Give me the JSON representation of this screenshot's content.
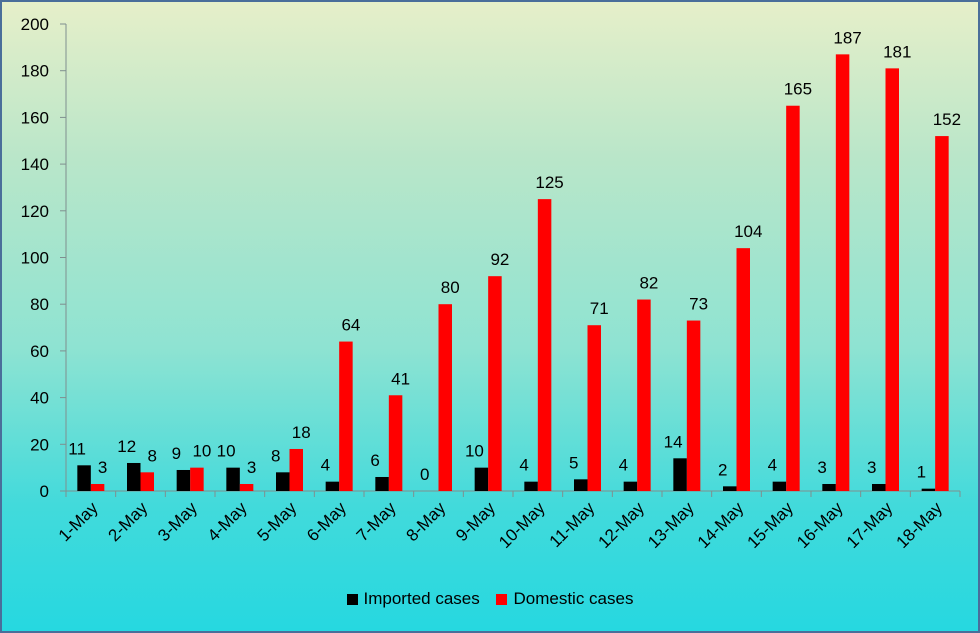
{
  "chart_data": {
    "type": "bar",
    "title": "",
    "xlabel": "",
    "ylabel": "",
    "ylim": [
      0,
      200
    ],
    "ytick_step": 20,
    "yticks": [
      "0",
      "20",
      "40",
      "60",
      "80",
      "100",
      "120",
      "140",
      "160",
      "180",
      "200"
    ],
    "grid": false,
    "legend_position": "bottom",
    "categories": [
      "1-May",
      "2-May",
      "3-May",
      "4-May",
      "5-May",
      "6-May",
      "7-May",
      "8-May",
      "9-May",
      "10-May",
      "11-May",
      "12-May",
      "13-May",
      "14-May",
      "15-May",
      "16-May",
      "17-May",
      "18-May"
    ],
    "series": [
      {
        "name": "Imported cases",
        "color": "#000000",
        "values": [
          11,
          12,
          9,
          10,
          8,
          4,
          6,
          0,
          10,
          4,
          5,
          4,
          14,
          2,
          4,
          3,
          3,
          1
        ]
      },
      {
        "name": "Domestic cases",
        "color": "#ff0000",
        "values": [
          3,
          8,
          10,
          3,
          18,
          64,
          41,
          80,
          92,
          125,
          71,
          82,
          73,
          104,
          165,
          187,
          181,
          152
        ]
      }
    ]
  }
}
